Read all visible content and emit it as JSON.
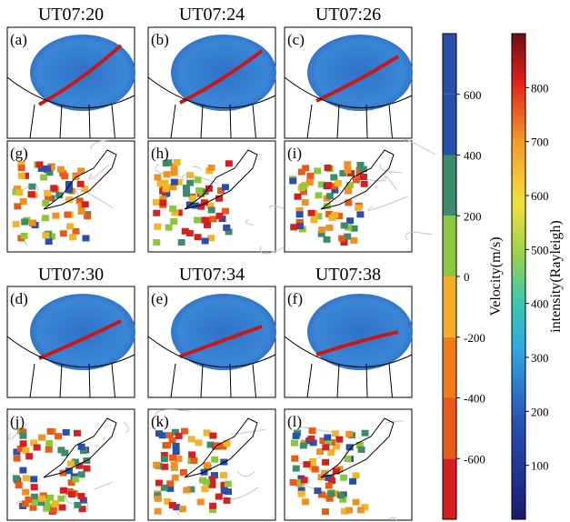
{
  "panels": [
    {
      "time": "UT07:20",
      "aurora_label": "(a)",
      "radar_label": "(g)"
    },
    {
      "time": "UT07:24",
      "aurora_label": "(b)",
      "radar_label": "(h)"
    },
    {
      "time": "UT07:26",
      "aurora_label": "(c)",
      "radar_label": "(i)"
    },
    {
      "time": "UT07:30",
      "aurora_label": "(d)",
      "radar_label": "(j)"
    },
    {
      "time": "UT07:34",
      "aurora_label": "(e)",
      "radar_label": "(k)"
    },
    {
      "time": "UT07:38",
      "aurora_label": "(f)",
      "radar_label": "(l)"
    }
  ],
  "velocity_colorbar": {
    "label": "Velocity(m/s)",
    "range": [
      -800,
      800
    ],
    "ticks": [
      600,
      400,
      200,
      0,
      -200,
      -400,
      -600
    ]
  },
  "intensity_colorbar": {
    "label": "intensity(Rayleigh)",
    "range": [
      0,
      900
    ],
    "ticks": [
      800,
      700,
      600,
      500,
      400,
      300,
      200,
      100
    ]
  }
}
